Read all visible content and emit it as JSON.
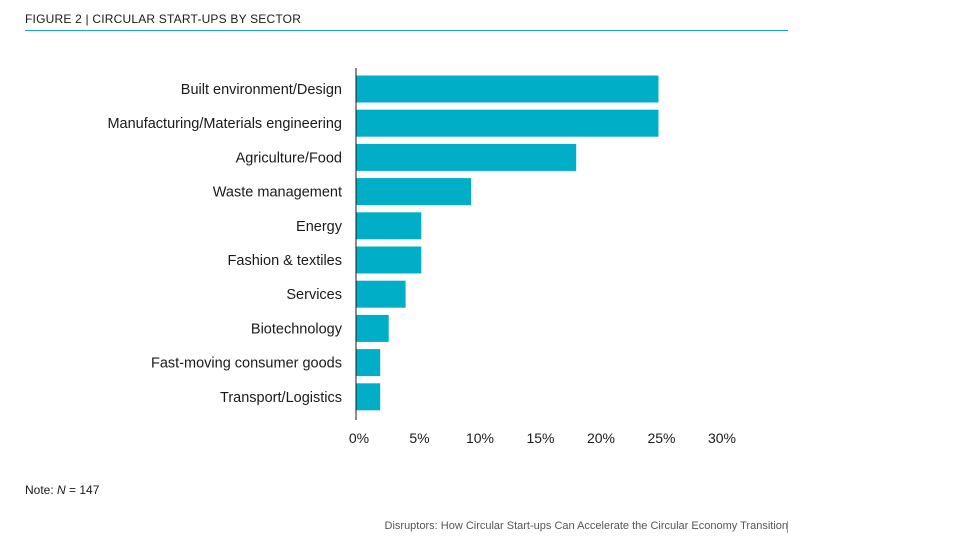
{
  "header": {
    "figure_label": "FIGURE 2 | CIRCULAR START-UPS BY SECTOR"
  },
  "colors": {
    "accent": "#00aec7",
    "rule": "#1aa6c4"
  },
  "chart_data": {
    "type": "bar",
    "orientation": "horizontal",
    "title": "CIRCULAR START-UPS BY SECTOR",
    "categories": [
      "Built environment/Design",
      "Manufacturing/Materials engineering",
      "Agriculture/Food",
      "Waste management",
      "Energy",
      "Fashion & textiles",
      "Services",
      "Biotechnology",
      "Fast-moving consumer goods",
      "Transport/Logistics"
    ],
    "values": [
      25,
      25,
      18.2,
      9.5,
      5.4,
      5.4,
      4.1,
      2.7,
      2.0,
      2.0
    ],
    "xlim": [
      0,
      30
    ],
    "ticks": [
      0,
      5,
      10,
      15,
      20,
      25,
      30
    ],
    "tick_labels": [
      "0%",
      "5%",
      "10%",
      "15%",
      "20%",
      "25%",
      "30%"
    ],
    "grid": false,
    "legend": "none",
    "bar_color": "#00aec7"
  },
  "note": {
    "prefix": "Note: ",
    "variable": "N",
    "suffix": " = 147"
  },
  "footer": {
    "text": "Disruptors: How Circular Start-ups Can Accelerate the Circular Economy Transition"
  }
}
